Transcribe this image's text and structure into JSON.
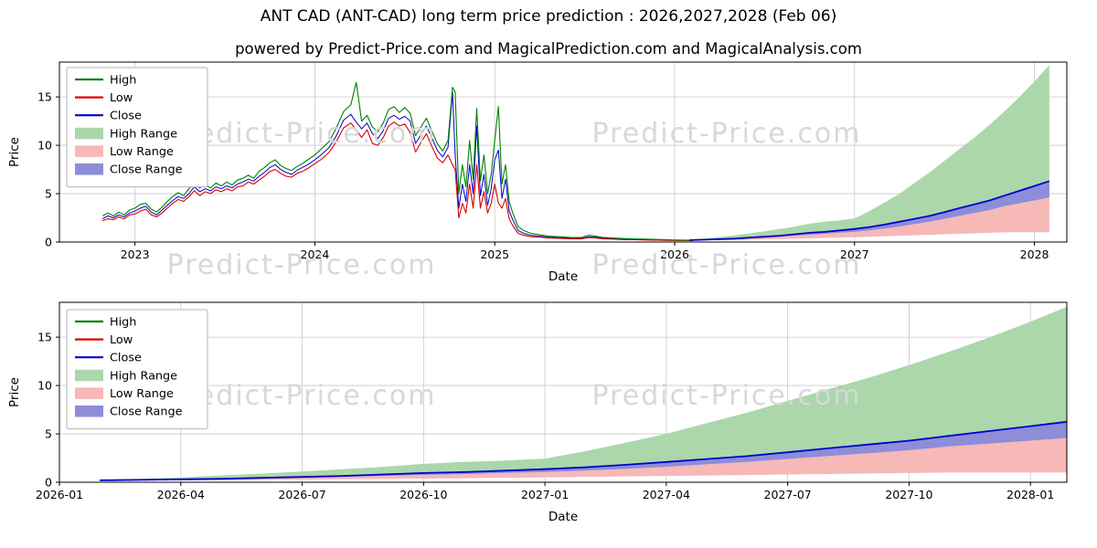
{
  "page": {
    "title": "ANT CAD (ANT-CAD) long term price prediction : 2026,2027,2028 (Feb 06)",
    "subtitle": "powered by Predict-Price.com and MagicalPrediction.com and MagicalAnalysis.com",
    "watermark": "Predict-Price.com"
  },
  "colors": {
    "high": "#008000",
    "low": "#dd0000",
    "close": "#0000cc",
    "high_range": "#abd7ab",
    "low_range": "#f7b8b8",
    "close_range": "#8d8dd8",
    "grid": "#c9c9c9",
    "watermark": "#d8d8d8"
  },
  "legend": {
    "items": [
      {
        "label": "High",
        "swatch": "line",
        "color_key": "high"
      },
      {
        "label": "Low",
        "swatch": "line",
        "color_key": "low"
      },
      {
        "label": "Close",
        "swatch": "line",
        "color_key": "close"
      },
      {
        "label": "High Range",
        "swatch": "patch",
        "color_key": "high_range"
      },
      {
        "label": "Low Range",
        "swatch": "patch",
        "color_key": "low_range"
      },
      {
        "label": "Close Range",
        "swatch": "patch",
        "color_key": "close_range"
      }
    ]
  },
  "chart_data": [
    {
      "type": "line",
      "title": "price history and prediction",
      "xlabel": "Date",
      "ylabel": "Price",
      "xlim": [
        2022.58,
        2028.18
      ],
      "ylim": [
        0,
        18.6
      ],
      "grid": true,
      "legend_position": "upper-left",
      "xticks": {
        "pos": [
          2023,
          2024,
          2025,
          2026,
          2027,
          2028
        ],
        "labels": [
          "2023",
          "2024",
          "2025",
          "2026",
          "2027",
          "2028"
        ]
      },
      "yticks": {
        "pos": [
          0,
          5,
          10,
          15
        ],
        "labels": [
          "0",
          "5",
          "10",
          "15"
        ]
      },
      "historical": {
        "x": [
          2022.82,
          2022.85,
          2022.88,
          2022.91,
          2022.94,
          2022.97,
          2023.0,
          2023.03,
          2023.06,
          2023.09,
          2023.12,
          2023.15,
          2023.18,
          2023.21,
          2023.24,
          2023.27,
          2023.3,
          2023.33,
          2023.36,
          2023.39,
          2023.42,
          2023.45,
          2023.48,
          2023.51,
          2023.54,
          2023.57,
          2023.6,
          2023.63,
          2023.66,
          2023.69,
          2023.72,
          2023.75,
          2023.78,
          2023.81,
          2023.84,
          2023.87,
          2023.9,
          2023.93,
          2023.96,
          2024.0,
          2024.04,
          2024.08,
          2024.12,
          2024.16,
          2024.2,
          2024.23,
          2024.26,
          2024.29,
          2024.32,
          2024.35,
          2024.38,
          2024.41,
          2024.44,
          2024.47,
          2024.5,
          2024.53,
          2024.56,
          2024.59,
          2024.62,
          2024.65,
          2024.68,
          2024.71,
          2024.74,
          2024.765,
          2024.78,
          2024.8,
          2024.82,
          2024.84,
          2024.86,
          2024.88,
          2024.9,
          2024.92,
          2024.94,
          2024.96,
          2024.98,
          2025.0,
          2025.02,
          2025.04,
          2025.06,
          2025.08,
          2025.1,
          2025.13,
          2025.16,
          2025.2,
          2025.25,
          2025.3,
          2025.36,
          2025.42,
          2025.48,
          2025.52,
          2025.56,
          2025.6,
          2025.66,
          2025.72,
          2025.78,
          2025.84,
          2025.9,
          2025.96,
          2026.02,
          2026.1
        ],
        "close": [
          2.4,
          2.7,
          2.5,
          2.8,
          2.6,
          3.0,
          3.2,
          3.5,
          3.7,
          3.1,
          2.8,
          3.3,
          3.8,
          4.3,
          4.7,
          4.5,
          5.0,
          5.7,
          5.2,
          5.5,
          5.3,
          5.7,
          5.5,
          5.8,
          5.6,
          6.0,
          6.2,
          6.5,
          6.3,
          6.8,
          7.2,
          7.7,
          8.0,
          7.5,
          7.2,
          7.0,
          7.4,
          7.7,
          8.0,
          8.5,
          9.1,
          9.8,
          11.0,
          12.6,
          13.2,
          12.4,
          11.7,
          12.3,
          11.2,
          10.7,
          11.5,
          12.8,
          13.1,
          12.7,
          13.0,
          12.5,
          10.2,
          11.1,
          12.0,
          10.8,
          9.5,
          8.8,
          9.8,
          15.5,
          9.0,
          3.5,
          6.0,
          4.2,
          8.0,
          5.0,
          12.0,
          4.8,
          7.0,
          3.8,
          5.5,
          8.5,
          9.5,
          4.5,
          6.5,
          3.2,
          2.3,
          1.2,
          0.9,
          0.7,
          0.6,
          0.5,
          0.45,
          0.4,
          0.38,
          0.55,
          0.5,
          0.4,
          0.35,
          0.3,
          0.28,
          0.25,
          0.22,
          0.2,
          0.18,
          0.16
        ],
        "high": [
          2.7,
          3.0,
          2.7,
          3.1,
          2.8,
          3.3,
          3.5,
          3.9,
          4.0,
          3.4,
          3.1,
          3.6,
          4.2,
          4.7,
          5.1,
          4.8,
          5.5,
          6.2,
          5.6,
          5.9,
          5.6,
          6.1,
          5.8,
          6.2,
          5.9,
          6.4,
          6.6,
          6.9,
          6.6,
          7.3,
          7.7,
          8.2,
          8.5,
          7.9,
          7.6,
          7.4,
          7.8,
          8.1,
          8.5,
          9.0,
          9.7,
          10.4,
          11.8,
          13.5,
          14.2,
          16.5,
          12.5,
          13.1,
          11.9,
          11.4,
          12.3,
          13.7,
          14.0,
          13.4,
          13.9,
          13.3,
          11.0,
          11.9,
          12.8,
          11.5,
          10.2,
          9.4,
          10.5,
          16.0,
          15.5,
          5.0,
          8.0,
          5.7,
          10.5,
          6.5,
          13.8,
          6.3,
          9.0,
          5.0,
          7.0,
          10.5,
          14.0,
          6.0,
          8.0,
          4.2,
          3.0,
          1.6,
          1.2,
          0.9,
          0.75,
          0.6,
          0.55,
          0.48,
          0.46,
          0.7,
          0.6,
          0.48,
          0.42,
          0.36,
          0.33,
          0.3,
          0.26,
          0.24,
          0.21,
          0.18
        ],
        "low": [
          2.2,
          2.4,
          2.3,
          2.6,
          2.4,
          2.8,
          2.9,
          3.2,
          3.4,
          2.8,
          2.6,
          3.0,
          3.5,
          4.0,
          4.4,
          4.2,
          4.7,
          5.3,
          4.8,
          5.2,
          5.0,
          5.4,
          5.2,
          5.5,
          5.3,
          5.7,
          5.8,
          6.2,
          6.0,
          6.4,
          6.8,
          7.3,
          7.5,
          7.1,
          6.8,
          6.7,
          7.1,
          7.3,
          7.6,
          8.1,
          8.6,
          9.3,
          10.4,
          11.8,
          12.3,
          11.6,
          10.8,
          11.6,
          10.2,
          10.0,
          10.8,
          12.0,
          12.4,
          12.0,
          12.2,
          11.3,
          9.3,
          10.3,
          11.2,
          9.9,
          8.7,
          8.2,
          9.0,
          8.0,
          7.5,
          2.5,
          4.0,
          3.0,
          6.0,
          3.5,
          8.0,
          3.5,
          5.2,
          3.0,
          4.0,
          6.0,
          4.0,
          3.5,
          4.5,
          2.4,
          1.7,
          0.9,
          0.7,
          0.55,
          0.5,
          0.42,
          0.38,
          0.34,
          0.32,
          0.45,
          0.42,
          0.34,
          0.3,
          0.25,
          0.24,
          0.21,
          0.19,
          0.17,
          0.16,
          0.14
        ]
      },
      "forecast": {
        "x": [
          2026.083,
          2026.167,
          2026.25,
          2026.333,
          2026.417,
          2026.5,
          2026.583,
          2026.667,
          2026.75,
          2026.833,
          2026.917,
          2027.0,
          2027.083,
          2027.167,
          2027.25,
          2027.333,
          2027.417,
          2027.5,
          2027.583,
          2027.667,
          2027.75,
          2027.833,
          2027.917,
          2028.0,
          2028.083
        ],
        "high_top": [
          0.25,
          0.35,
          0.5,
          0.7,
          0.9,
          1.1,
          1.35,
          1.6,
          1.9,
          2.1,
          2.25,
          2.45,
          3.2,
          4.1,
          5.0,
          6.1,
          7.2,
          8.4,
          9.6,
          10.8,
          12.1,
          13.5,
          15.0,
          16.6,
          18.3
        ],
        "close": [
          0.2,
          0.25,
          0.3,
          0.35,
          0.45,
          0.55,
          0.65,
          0.8,
          0.95,
          1.05,
          1.2,
          1.35,
          1.55,
          1.8,
          2.1,
          2.4,
          2.7,
          3.1,
          3.5,
          3.9,
          4.3,
          4.8,
          5.3,
          5.8,
          6.3
        ],
        "close_band_low": [
          0.18,
          0.22,
          0.26,
          0.3,
          0.38,
          0.46,
          0.54,
          0.65,
          0.76,
          0.84,
          0.95,
          1.05,
          1.2,
          1.38,
          1.6,
          1.85,
          2.1,
          2.4,
          2.7,
          3.0,
          3.3,
          3.7,
          4.0,
          4.3,
          4.6
        ],
        "low_bottom": [
          0.15,
          0.17,
          0.19,
          0.21,
          0.24,
          0.27,
          0.3,
          0.34,
          0.38,
          0.42,
          0.46,
          0.5,
          0.55,
          0.6,
          0.65,
          0.7,
          0.75,
          0.8,
          0.85,
          0.9,
          0.95,
          1.0,
          1.0,
          1.0,
          1.0
        ]
      }
    },
    {
      "type": "line",
      "title": "prediction detail 2026-2028",
      "xlabel": "Date",
      "ylabel": "Price",
      "xlim": [
        2026.0,
        2028.075
      ],
      "ylim": [
        0,
        18.6
      ],
      "grid": true,
      "legend_position": "upper-left",
      "xticks": {
        "pos": [
          2026.0,
          2026.25,
          2026.5,
          2026.75,
          2027.0,
          2027.25,
          2027.5,
          2027.75,
          2028.0
        ],
        "labels": [
          "2026-01",
          "2026-04",
          "2026-07",
          "2026-10",
          "2027-01",
          "2027-04",
          "2027-07",
          "2027-10",
          "2028-01"
        ]
      },
      "yticks": {
        "pos": [
          0,
          5,
          10,
          15
        ],
        "labels": [
          "0",
          "5",
          "10",
          "15"
        ]
      }
    }
  ]
}
